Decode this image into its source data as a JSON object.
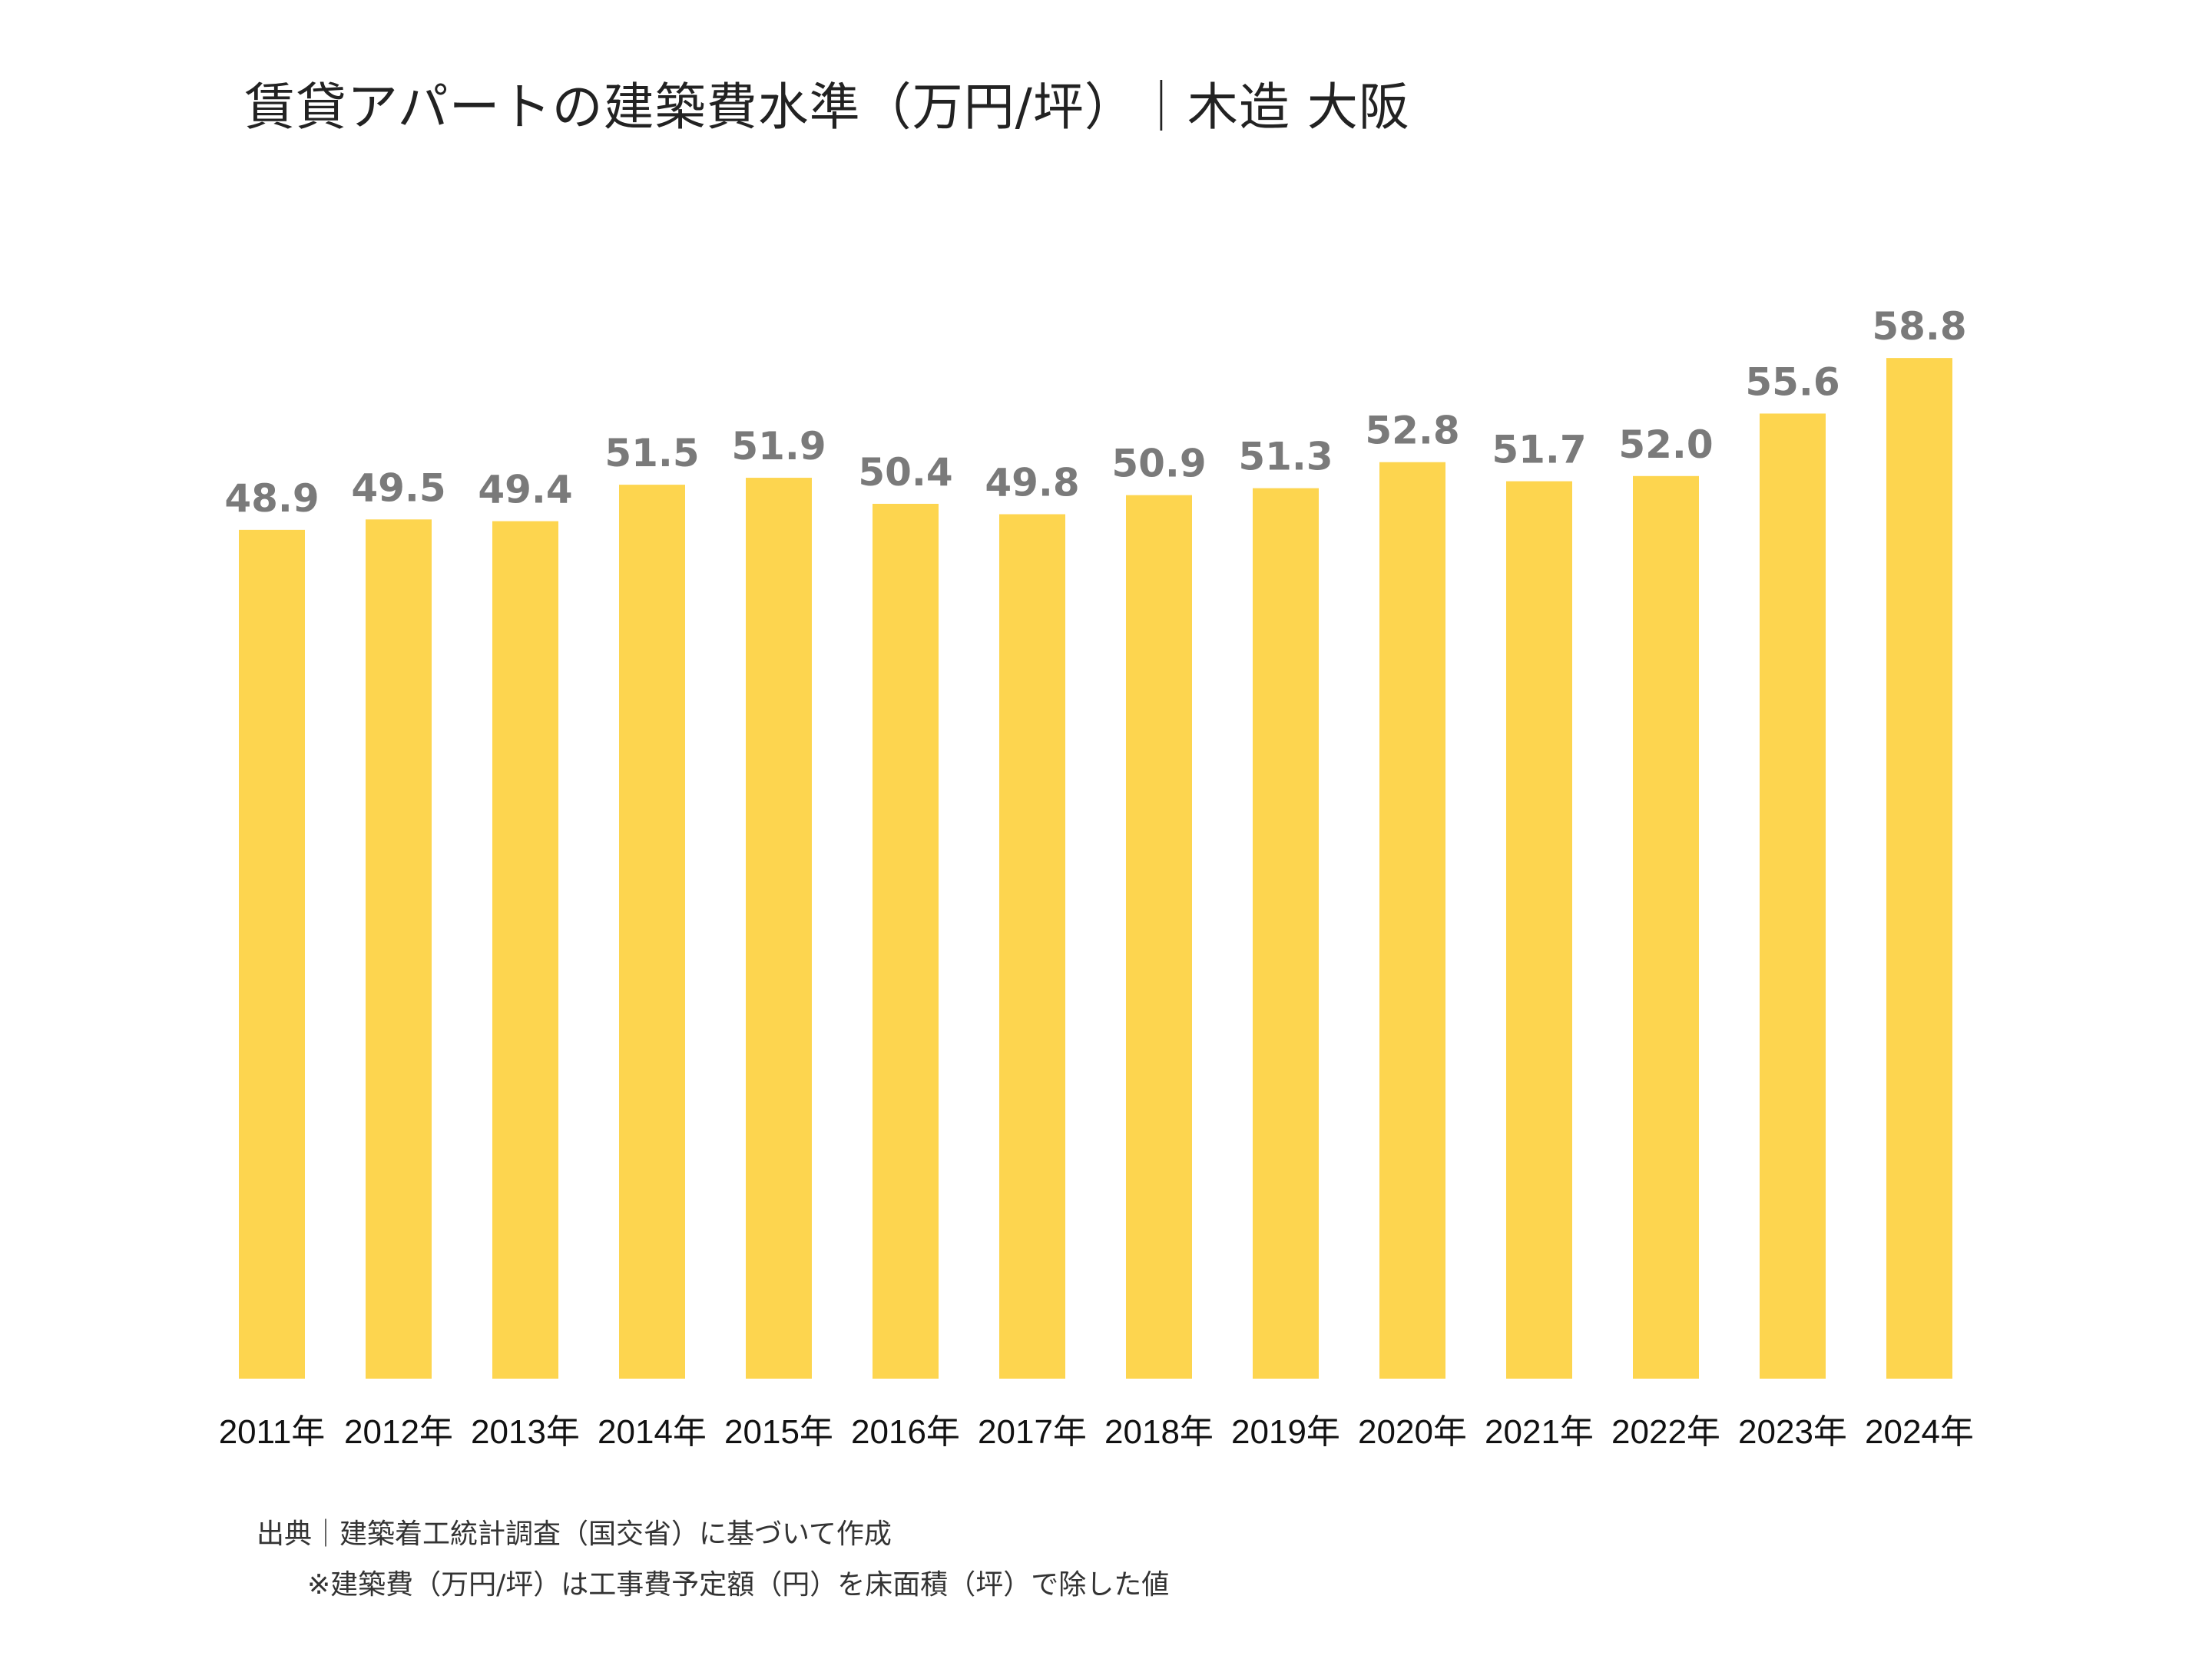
{
  "chart_data": {
    "type": "bar",
    "title": "賃貸アパートの建築費水準（万円/坪）｜木造 大阪",
    "categories": [
      "2011年",
      "2012年",
      "2013年",
      "2014年",
      "2015年",
      "2016年",
      "2017年",
      "2018年",
      "2019年",
      "2020年",
      "2021年",
      "2022年",
      "2023年",
      "2024年"
    ],
    "values": [
      48.9,
      49.5,
      49.4,
      51.5,
      51.9,
      50.4,
      49.8,
      50.9,
      51.3,
      52.8,
      51.7,
      52.0,
      55.6,
      58.8
    ],
    "value_labels": [
      "48.9",
      "49.5",
      "49.4",
      "51.5",
      "51.9",
      "50.4",
      "49.8",
      "50.9",
      "51.3",
      "52.8",
      "51.7",
      "52.0",
      "55.6",
      "58.8"
    ],
    "ylim": [
      0,
      75
    ],
    "grid": false,
    "legend": "none",
    "bar_color": "#FDD54F",
    "label_color": "#7A7A7A"
  },
  "footnotes": {
    "source": "出典｜建築着工統計調査（国交省）に基づいて作成",
    "remark": "※建築費（万円/坪）は工事費予定額（円）を床面積（坪）で除した値"
  }
}
